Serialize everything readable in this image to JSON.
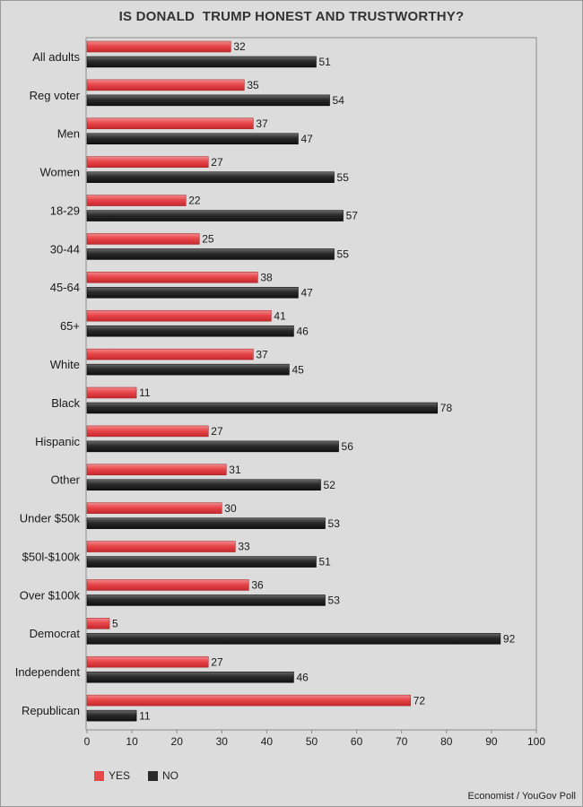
{
  "chart_data": {
    "type": "bar",
    "orientation": "horizontal",
    "title": "IS DONALD  TRUMP HONEST AND TRUSTWORTHY?",
    "categories": [
      "All adults",
      "Reg voter",
      "Men",
      "Women",
      "18-29",
      "30-44",
      "45-64",
      "65+",
      "White",
      "Black",
      "Hispanic",
      "Other",
      "Under $50k",
      "$50l-$100k",
      "Over $100k",
      "Democrat",
      "Independent",
      "Republican"
    ],
    "series": [
      {
        "name": "YES",
        "color": "#e8474b",
        "values": [
          32,
          35,
          37,
          27,
          22,
          25,
          38,
          41,
          37,
          11,
          27,
          31,
          30,
          33,
          36,
          5,
          27,
          72
        ]
      },
      {
        "name": "NO",
        "color": "#2a2a2a",
        "values": [
          51,
          54,
          47,
          55,
          57,
          55,
          47,
          46,
          45,
          78,
          56,
          52,
          53,
          51,
          53,
          92,
          46,
          11
        ]
      }
    ],
    "xlim": [
      0,
      100
    ],
    "xticks": [
      0,
      10,
      20,
      30,
      40,
      50,
      60,
      70,
      80,
      90,
      100
    ],
    "grid": false,
    "legend_position": "bottom-left"
  },
  "source": "Economist / YouGov Poll"
}
